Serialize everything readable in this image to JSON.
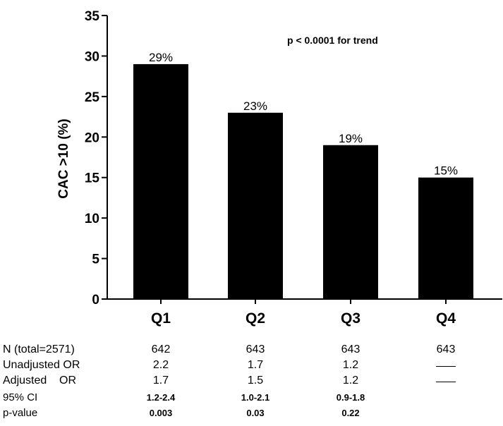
{
  "chart_data": {
    "type": "bar",
    "categories": [
      "Q1",
      "Q2",
      "Q3",
      "Q4"
    ],
    "values": [
      29,
      23,
      19,
      15
    ],
    "data_labels": [
      "29%",
      "23%",
      "19%",
      "15%"
    ],
    "ylabel": "CAC >10 (%)",
    "xlabel": "",
    "ylim": [
      0,
      35
    ],
    "yticks": [
      0,
      5,
      10,
      15,
      20,
      25,
      30,
      35
    ],
    "annotation": "p < 0.0001 for trend",
    "grid": false,
    "bar_color": "#000000"
  },
  "stats_table": {
    "rows": [
      {
        "label": "N (total=2571)",
        "values": [
          "642",
          "643",
          "643",
          "643"
        ]
      },
      {
        "label": "Unadjusted OR",
        "values": [
          "2.2",
          "1.7",
          "1.2",
          ""
        ]
      },
      {
        "label": "Adjusted    OR",
        "values": [
          "1.7",
          "1.5",
          "1.2",
          ""
        ]
      },
      {
        "label": "95% CI",
        "values": [
          "1.2-2.4",
          "1.0-2.1",
          "0.9-1.8",
          ""
        ]
      },
      {
        "label": "p-value",
        "values": [
          "0.003",
          "0.03",
          "0.22",
          ""
        ]
      }
    ]
  }
}
